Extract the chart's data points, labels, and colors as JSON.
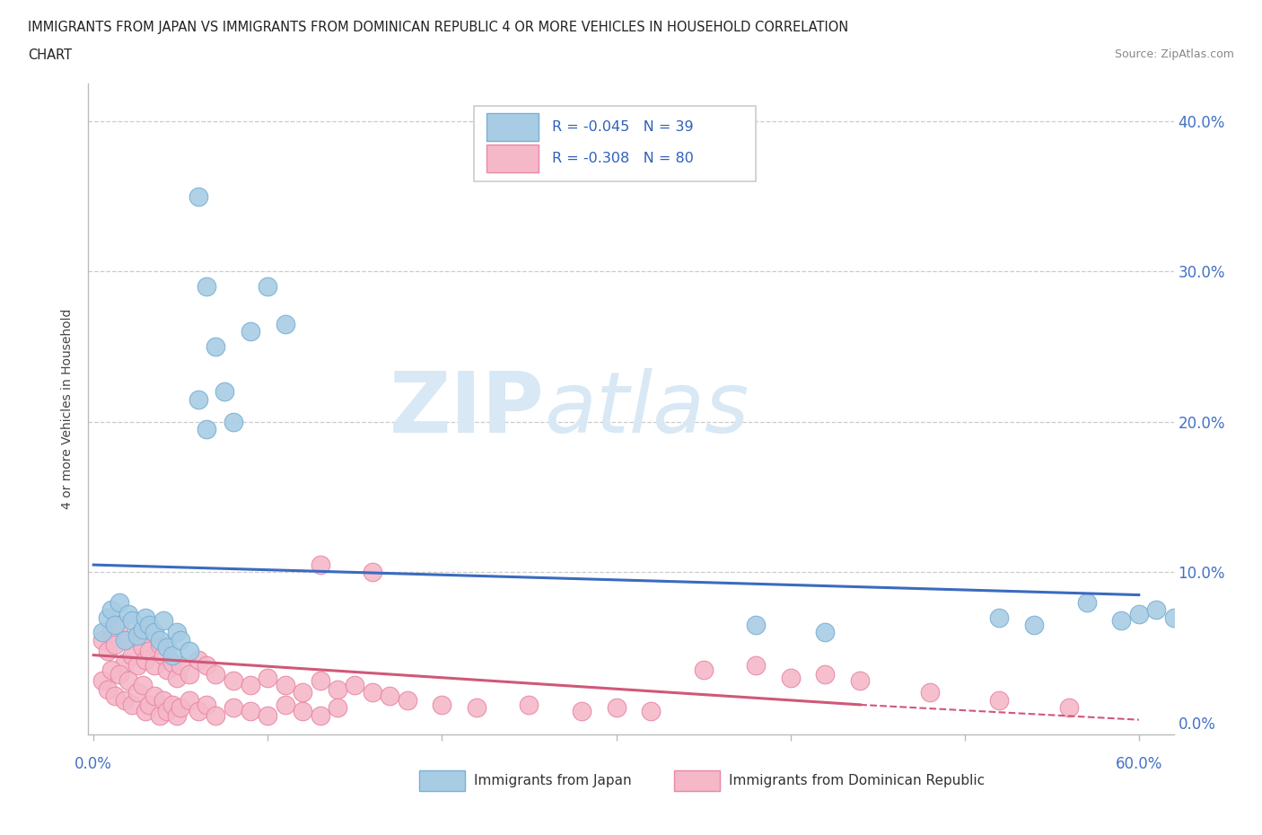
{
  "title_line1": "IMMIGRANTS FROM JAPAN VS IMMIGRANTS FROM DOMINICAN REPUBLIC 4 OR MORE VEHICLES IN HOUSEHOLD CORRELATION",
  "title_line2": "CHART",
  "source": "Source: ZipAtlas.com",
  "ylabel": "4 or more Vehicles in Household",
  "xlim": [
    -0.003,
    0.62
  ],
  "ylim": [
    -0.008,
    0.425
  ],
  "japan_color": "#a8cce4",
  "japan_edge": "#7ab0d4",
  "dr_color": "#f5b8c8",
  "dr_edge": "#e888a8",
  "japan_R": -0.045,
  "japan_N": 39,
  "dr_R": -0.308,
  "dr_N": 80,
  "regression_japan_color": "#3a6bbf",
  "regression_dr_color": "#d05878",
  "watermark_color": "#d8e8f4",
  "legend_label_japan": "Immigrants from Japan",
  "legend_label_dr": "Immigrants from Dominican Republic",
  "japan_x": [
    0.005,
    0.008,
    0.01,
    0.012,
    0.015,
    0.018,
    0.02,
    0.022,
    0.025,
    0.028,
    0.03,
    0.032,
    0.035,
    0.038,
    0.04,
    0.042,
    0.045,
    0.048,
    0.05,
    0.055,
    0.06,
    0.065,
    0.07,
    0.075,
    0.08,
    0.09,
    0.1,
    0.11,
    0.06,
    0.065,
    0.38,
    0.42,
    0.52,
    0.54,
    0.57,
    0.59,
    0.6,
    0.61,
    0.62
  ],
  "japan_y": [
    0.06,
    0.07,
    0.075,
    0.065,
    0.08,
    0.055,
    0.072,
    0.068,
    0.058,
    0.062,
    0.07,
    0.065,
    0.06,
    0.055,
    0.068,
    0.05,
    0.045,
    0.06,
    0.055,
    0.048,
    0.35,
    0.29,
    0.25,
    0.22,
    0.2,
    0.26,
    0.29,
    0.265,
    0.215,
    0.195,
    0.065,
    0.06,
    0.07,
    0.065,
    0.08,
    0.068,
    0.072,
    0.075,
    0.07
  ],
  "dr_x": [
    0.005,
    0.008,
    0.01,
    0.012,
    0.015,
    0.018,
    0.02,
    0.022,
    0.025,
    0.028,
    0.005,
    0.008,
    0.01,
    0.012,
    0.015,
    0.018,
    0.02,
    0.022,
    0.025,
    0.028,
    0.03,
    0.032,
    0.035,
    0.038,
    0.04,
    0.042,
    0.045,
    0.048,
    0.05,
    0.055,
    0.03,
    0.032,
    0.035,
    0.038,
    0.04,
    0.042,
    0.045,
    0.048,
    0.05,
    0.055,
    0.06,
    0.065,
    0.07,
    0.08,
    0.09,
    0.1,
    0.11,
    0.12,
    0.13,
    0.14,
    0.06,
    0.065,
    0.07,
    0.08,
    0.09,
    0.1,
    0.11,
    0.12,
    0.13,
    0.14,
    0.15,
    0.16,
    0.17,
    0.18,
    0.2,
    0.22,
    0.25,
    0.28,
    0.3,
    0.32,
    0.13,
    0.16,
    0.35,
    0.38,
    0.4,
    0.42,
    0.44,
    0.48,
    0.52,
    0.56
  ],
  "dr_y": [
    0.055,
    0.048,
    0.06,
    0.052,
    0.065,
    0.04,
    0.055,
    0.045,
    0.038,
    0.05,
    0.028,
    0.022,
    0.035,
    0.018,
    0.032,
    0.015,
    0.028,
    0.012,
    0.02,
    0.025,
    0.042,
    0.048,
    0.038,
    0.052,
    0.045,
    0.035,
    0.04,
    0.03,
    0.038,
    0.032,
    0.008,
    0.012,
    0.018,
    0.005,
    0.015,
    0.008,
    0.012,
    0.005,
    0.01,
    0.015,
    0.042,
    0.038,
    0.032,
    0.028,
    0.025,
    0.03,
    0.025,
    0.02,
    0.028,
    0.022,
    0.008,
    0.012,
    0.005,
    0.01,
    0.008,
    0.005,
    0.012,
    0.008,
    0.005,
    0.01,
    0.025,
    0.02,
    0.018,
    0.015,
    0.012,
    0.01,
    0.012,
    0.008,
    0.01,
    0.008,
    0.105,
    0.1,
    0.035,
    0.038,
    0.03,
    0.032,
    0.028,
    0.02,
    0.015,
    0.01
  ]
}
